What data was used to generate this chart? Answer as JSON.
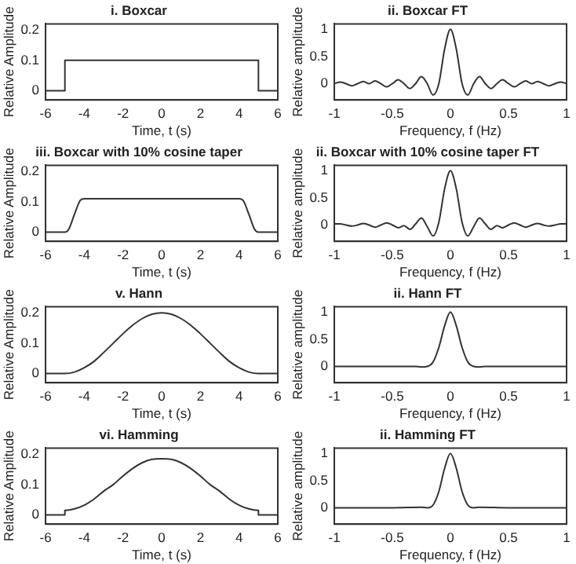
{
  "chart_data": [
    {
      "type": "line",
      "title": "i. Boxcar",
      "xlabel": "Time, t (s)",
      "ylabel": "Relative Amplitude",
      "xlim": [
        -6,
        6
      ],
      "xticks": [
        -6,
        -4,
        -2,
        0,
        2,
        4,
        6
      ],
      "ylim": [
        -0.03,
        0.22
      ],
      "yticks": [
        0,
        0.1,
        0.2
      ],
      "marker": "none",
      "color": "#333333",
      "x": [
        -6,
        -5,
        -5,
        5,
        5,
        6
      ],
      "values": [
        0,
        0,
        0.1,
        0.1,
        0,
        0
      ]
    },
    {
      "type": "line",
      "title": "ii. Boxcar FT",
      "xlabel": "Frequency, f (Hz)",
      "ylabel": "Relative amplitude",
      "xlim": [
        -1,
        1
      ],
      "xticks": [
        -1,
        -0.5,
        0,
        0.5,
        1
      ],
      "ylim": [
        -0.3,
        1.1
      ],
      "yticks": [
        0,
        0.5,
        1
      ],
      "marker": "none",
      "color": "#333333",
      "x": [
        -1,
        -0.95,
        -0.9,
        -0.85,
        -0.8,
        -0.75,
        -0.7,
        -0.65,
        -0.6,
        -0.55,
        -0.5,
        -0.45,
        -0.4,
        -0.35,
        -0.3,
        -0.25,
        -0.2,
        -0.15,
        -0.1,
        -0.05,
        0,
        0.05,
        0.1,
        0.15,
        0.2,
        0.25,
        0.3,
        0.35,
        0.4,
        0.45,
        0.5,
        0.55,
        0.6,
        0.65,
        0.7,
        0.75,
        0.8,
        0.85,
        0.9,
        0.95,
        1
      ],
      "values": [
        0,
        0.03,
        0,
        -0.04,
        0,
        0.04,
        0,
        0.05,
        0,
        -0.06,
        0,
        0.07,
        0,
        -0.09,
        0,
        0.13,
        0,
        -0.21,
        0,
        0.64,
        1,
        0.64,
        0,
        -0.21,
        0,
        0.13,
        0,
        -0.09,
        0,
        0.07,
        0,
        -0.06,
        0,
        0.05,
        0,
        0.04,
        0,
        -0.04,
        0,
        0.03,
        0
      ]
    },
    {
      "type": "line",
      "title": "iii. Boxcar with 10% cosine taper",
      "xlabel": "Time, t (s)",
      "ylabel": "Relative Amplitude",
      "xlim": [
        -6,
        6
      ],
      "xticks": [
        -6,
        -4,
        -2,
        0,
        2,
        4,
        6
      ],
      "ylim": [
        -0.03,
        0.22
      ],
      "yticks": [
        0,
        0.1,
        0.2
      ],
      "marker": "none",
      "color": "#333333",
      "x": [
        -6,
        -5,
        -4.8,
        -4.5,
        -4.2,
        -4,
        4,
        4.2,
        4.5,
        4.8,
        5,
        6
      ],
      "values": [
        0,
        0,
        0.01,
        0.06,
        0.105,
        0.11,
        0.11,
        0.105,
        0.06,
        0.01,
        0,
        0
      ]
    },
    {
      "type": "line",
      "title": "ii. Boxcar with 10% cosine taper FT",
      "xlabel": "Frequency, f (Hz)",
      "ylabel": "Relative amplitude",
      "xlim": [
        -1,
        1
      ],
      "xticks": [
        -1,
        -0.5,
        0,
        0.5,
        1
      ],
      "ylim": [
        -0.3,
        1.1
      ],
      "yticks": [
        0,
        0.5,
        1
      ],
      "marker": "none",
      "color": "#333333",
      "x": [
        -1,
        -0.95,
        -0.9,
        -0.85,
        -0.8,
        -0.75,
        -0.7,
        -0.65,
        -0.6,
        -0.55,
        -0.5,
        -0.45,
        -0.4,
        -0.35,
        -0.3,
        -0.25,
        -0.2,
        -0.15,
        -0.1,
        -0.05,
        0,
        0.05,
        0.1,
        0.15,
        0.2,
        0.25,
        0.3,
        0.35,
        0.4,
        0.45,
        0.5,
        0.55,
        0.6,
        0.65,
        0.7,
        0.75,
        0.8,
        0.85,
        0.9,
        0.95,
        1
      ],
      "values": [
        0.02,
        0.02,
        0,
        -0.02,
        0,
        0.03,
        0,
        -0.04,
        0,
        0.04,
        0,
        -0.05,
        -0.01,
        -0.08,
        0.02,
        0.13,
        -0.03,
        -0.2,
        0.05,
        0.67,
        1,
        0.67,
        0.05,
        -0.2,
        -0.03,
        0.13,
        0.02,
        -0.08,
        -0.01,
        -0.05,
        0,
        0.04,
        0,
        -0.04,
        0,
        0.03,
        0,
        -0.02,
        0,
        0.02,
        0.02
      ]
    },
    {
      "type": "line",
      "title": "v. Hann",
      "xlabel": "Time, t (s)",
      "ylabel": "Relative Amplitude",
      "xlim": [
        -6,
        6
      ],
      "xticks": [
        -6,
        -4,
        -2,
        0,
        2,
        4,
        6
      ],
      "ylim": [
        -0.03,
        0.22
      ],
      "yticks": [
        0,
        0.1,
        0.2
      ],
      "marker": "none",
      "color": "#333333",
      "x": [
        -6,
        -5,
        -4.5,
        -4,
        -3.5,
        -3,
        -2.5,
        -2,
        -1.5,
        -1,
        -0.5,
        0,
        0.5,
        1,
        1.5,
        2,
        2.5,
        3,
        3.5,
        4,
        4.5,
        5,
        6
      ],
      "values": [
        0,
        0,
        0.005,
        0.019,
        0.04,
        0.069,
        0.1,
        0.131,
        0.159,
        0.181,
        0.195,
        0.2,
        0.195,
        0.181,
        0.159,
        0.131,
        0.1,
        0.069,
        0.04,
        0.019,
        0.005,
        0,
        0
      ]
    },
    {
      "type": "line",
      "title": "ii. Hann FT",
      "xlabel": "Frequency, f (Hz)",
      "ylabel": "Relative amplitude",
      "xlim": [
        -1,
        1
      ],
      "xticks": [
        -1,
        -0.5,
        0,
        0.5,
        1
      ],
      "ylim": [
        -0.3,
        1.1
      ],
      "yticks": [
        0,
        0.5,
        1
      ],
      "marker": "none",
      "color": "#333333",
      "x": [
        -1,
        -0.5,
        -0.3,
        -0.25,
        -0.2,
        -0.15,
        -0.1,
        -0.05,
        0,
        0.05,
        0.1,
        0.15,
        0.2,
        0.25,
        0.3,
        0.5,
        1
      ],
      "values": [
        0,
        0,
        0,
        -0.01,
        0,
        0.08,
        0.35,
        0.75,
        1,
        0.75,
        0.35,
        0.08,
        0,
        -0.01,
        0,
        0,
        0
      ]
    },
    {
      "type": "line",
      "title": "vi. Hamming",
      "xlabel": "Time, t (s)",
      "ylabel": "Relative Amplitude",
      "xlim": [
        -6,
        6
      ],
      "xticks": [
        -6,
        -4,
        -2,
        0,
        2,
        4,
        6
      ],
      "ylim": [
        -0.03,
        0.22
      ],
      "yticks": [
        0,
        0.1,
        0.2
      ],
      "marker": "none",
      "color": "#333333",
      "x": [
        -6,
        -5,
        -5,
        -4.5,
        -4,
        -3.5,
        -3,
        -2.5,
        -2,
        -1.5,
        -1,
        -0.5,
        0,
        0.5,
        1,
        1.5,
        2,
        2.5,
        3,
        3.5,
        4,
        4.5,
        5,
        5,
        6
      ],
      "values": [
        0,
        0,
        0.015,
        0.02,
        0.032,
        0.052,
        0.078,
        0.1,
        0.128,
        0.153,
        0.172,
        0.183,
        0.185,
        0.183,
        0.172,
        0.153,
        0.128,
        0.1,
        0.078,
        0.052,
        0.032,
        0.02,
        0.015,
        0,
        0
      ]
    },
    {
      "type": "line",
      "title": "ii. Hamming FT",
      "xlabel": "Frequency, f (Hz)",
      "ylabel": "Relative amplitude",
      "xlim": [
        -1,
        1
      ],
      "xticks": [
        -1,
        -0.5,
        0,
        0.5,
        1
      ],
      "ylim": [
        -0.3,
        1.1
      ],
      "yticks": [
        0,
        0.5,
        1
      ],
      "marker": "none",
      "color": "#333333",
      "x": [
        -1,
        -0.5,
        -0.25,
        -0.2,
        -0.15,
        -0.1,
        -0.05,
        0,
        0.05,
        0.1,
        0.15,
        0.2,
        0.25,
        0.5,
        1
      ],
      "values": [
        0,
        0,
        0.01,
        0,
        0.05,
        0.3,
        0.73,
        1,
        0.73,
        0.3,
        0.05,
        0,
        0.01,
        0,
        0
      ]
    }
  ]
}
